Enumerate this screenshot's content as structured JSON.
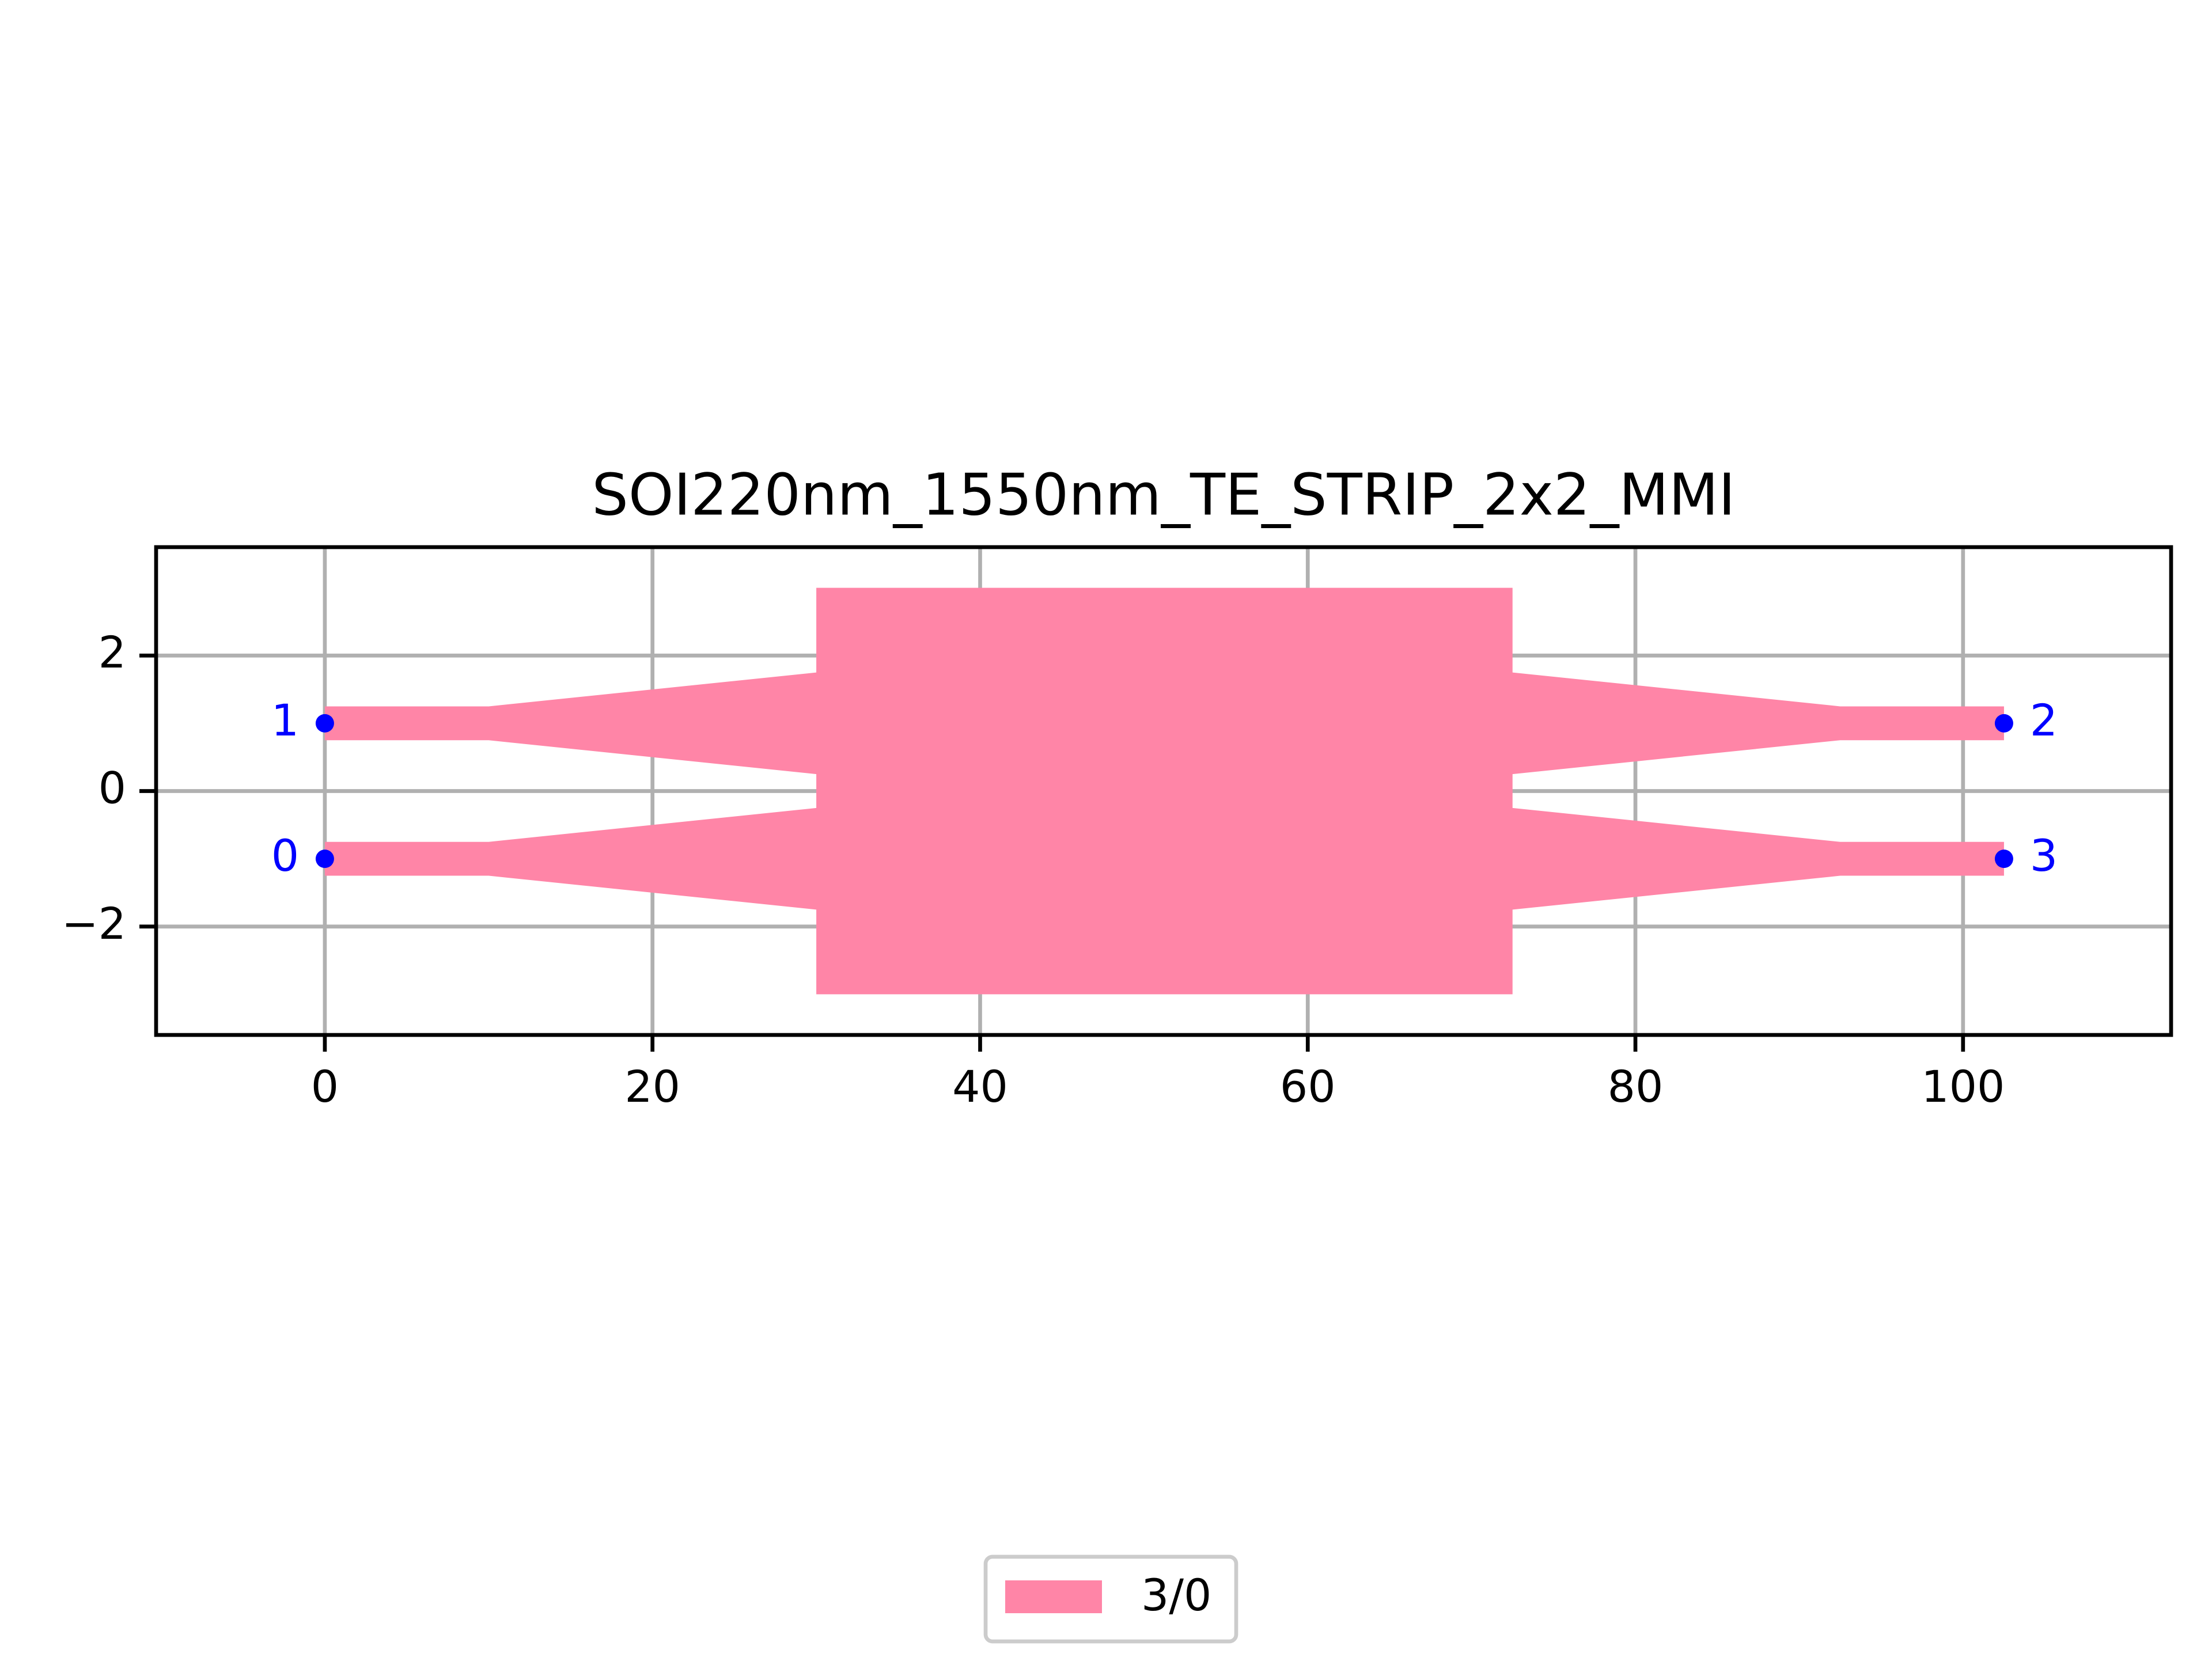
{
  "chart_data": {
    "type": "polygon",
    "title": "SOI220nm_1550nm_TE_STRIP_2x2_MMI",
    "polygon": {
      "name": "3/0",
      "color": "#ff85a7",
      "x": [
        0,
        10,
        30,
        30,
        72.5,
        72.5,
        92.5,
        102.5,
        102.5,
        92.5,
        72.5,
        72.5,
        92.5,
        102.5,
        102.5,
        92.5,
        72.5,
        72.5,
        30,
        30,
        10,
        0,
        0,
        10,
        30,
        30,
        10,
        0
      ],
      "y": [
        1.25,
        1.25,
        1.75,
        3,
        3,
        1.75,
        1.25,
        1.25,
        0.75,
        0.75,
        0.25,
        -0.25,
        -0.75,
        -0.75,
        -1.25,
        -1.25,
        -1.75,
        -3,
        -3,
        -1.75,
        -1.25,
        -1.25,
        -0.75,
        -0.75,
        -0.25,
        0.25,
        0.75,
        0.75
      ]
    },
    "ports": {
      "color": "#0000ff",
      "names": [
        "0",
        "1",
        "2",
        "3"
      ],
      "x": [
        0,
        0,
        102.5,
        102.5
      ],
      "y": [
        -1,
        1,
        1,
        -1
      ]
    },
    "xlim": [
      -10.3,
      112.7
    ],
    "ylim": [
      -3.6,
      3.6
    ],
    "xticks": [
      0,
      20,
      40,
      60,
      80,
      100
    ],
    "yticks": [
      {
        "value": -2,
        "label": "−2"
      },
      0,
      2
    ],
    "grid": true,
    "legend": "lower center"
  }
}
